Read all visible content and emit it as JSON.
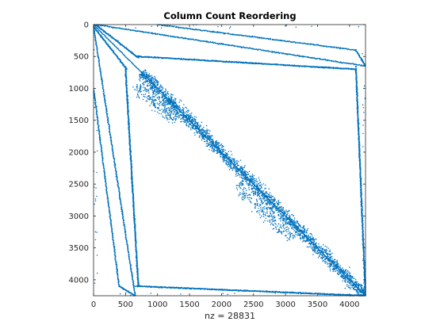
{
  "chart_data": {
    "type": "scatter",
    "title": "Column Count Reordering",
    "xlabel": "nz = 28831",
    "ylabel": "",
    "xlim": [
      0,
      4250
    ],
    "ylim": [
      0,
      4250
    ],
    "y_reversed": true,
    "x_ticks": [
      0,
      500,
      1000,
      1500,
      2000,
      2500,
      3000,
      3500,
      4000
    ],
    "y_ticks": [
      0,
      500,
      1000,
      1500,
      2000,
      2500,
      3000,
      3500,
      4000
    ],
    "x_tick_labels": [
      "0",
      "500",
      "1000",
      "1500",
      "2000",
      "2500",
      "3000",
      "3500",
      "4000"
    ],
    "y_tick_labels": [
      "0",
      "500",
      "1000",
      "1500",
      "2000",
      "2500",
      "3000",
      "3500",
      "4000"
    ],
    "grid": false,
    "marker_color": "#0072BD",
    "structure": {
      "main_diagonal": [
        [
          0,
          0
        ],
        [
          4250,
          4250
        ]
      ],
      "diagonal_band_segments": [
        {
          "from": [
            750,
            750
          ],
          "to": [
            4250,
            4250
          ],
          "spread": 60
        },
        {
          "from": [
            700,
            950
          ],
          "to": [
            1300,
            1500
          ],
          "spread": 120
        },
        {
          "from": [
            2250,
            2500
          ],
          "to": [
            3100,
            3350
          ],
          "spread": 120
        }
      ],
      "off_diagonal_lines": [
        {
          "from": [
            30,
            0
          ],
          "to": [
            4250,
            650
          ]
        },
        {
          "from": [
            30,
            0
          ],
          "to": [
            700,
            520
          ]
        },
        {
          "from": [
            700,
            500
          ],
          "to": [
            4100,
            700
          ]
        },
        {
          "from": [
            4100,
            700
          ],
          "to": [
            4250,
            4250
          ]
        },
        {
          "from": [
            0,
            30
          ],
          "to": [
            520,
            700
          ]
        },
        {
          "from": [
            500,
            700
          ],
          "to": [
            700,
            4100
          ]
        },
        {
          "from": [
            650,
            4100
          ],
          "to": [
            4250,
            4250
          ]
        },
        {
          "from": [
            0,
            1000
          ],
          "to": [
            400,
            4100
          ]
        },
        {
          "from": [
            400,
            4100
          ],
          "to": [
            650,
            4250
          ]
        },
        {
          "from": [
            4000,
            4250
          ],
          "to": [
            4250,
            4250
          ]
        }
      ]
    }
  }
}
